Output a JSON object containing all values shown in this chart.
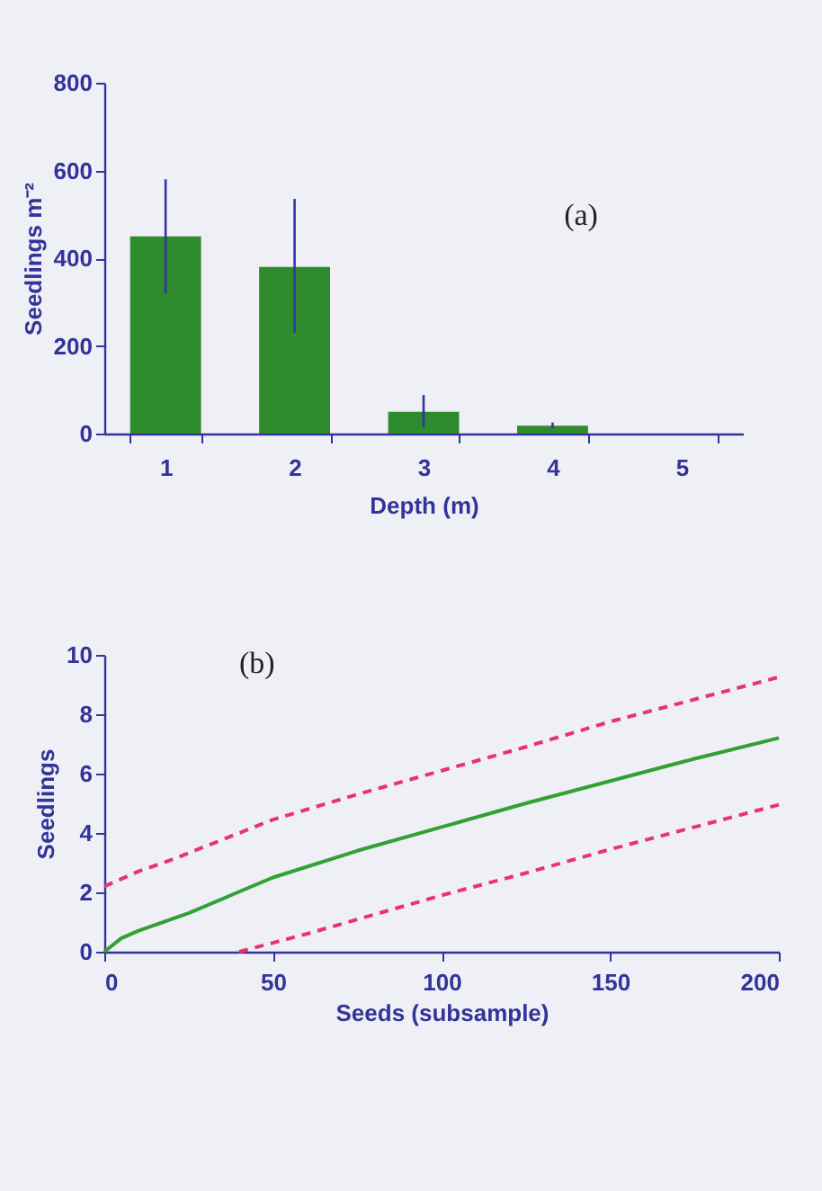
{
  "chart_data": [
    {
      "type": "bar",
      "categories": [
        "1",
        "2",
        "3",
        "4",
        "5"
      ],
      "values": [
        450,
        380,
        50,
        18,
        null
      ],
      "color": "#2e8b2e",
      "errors": [
        [
          320,
          580
        ],
        [
          230,
          535
        ],
        [
          15,
          88
        ],
        [
          12,
          25
        ],
        null
      ],
      "ylim": [
        0,
        800
      ],
      "yticks": [
        0,
        200,
        400,
        600,
        800
      ],
      "xlabel": "Depth (m)",
      "ylabel": "Seedlings m⁻²",
      "annotations": [
        "(a)"
      ]
    },
    {
      "type": "line",
      "xlim": [
        0,
        200
      ],
      "xticks": [
        0,
        50,
        100,
        150,
        200
      ],
      "ylim": [
        0,
        10
      ],
      "yticks": [
        0,
        2,
        4,
        6,
        8,
        10
      ],
      "xlabel": "Seeds (subsample)",
      "ylabel": "Seedlings",
      "annotations": [
        "(b)"
      ],
      "series": [
        {
          "color": "#33a033",
          "line_style": "solid",
          "x": [
            0,
            5,
            10,
            25,
            50,
            75,
            100,
            125,
            150,
            175,
            200
          ],
          "values": [
            0,
            0.45,
            0.7,
            1.3,
            2.5,
            3.4,
            4.2,
            5.0,
            5.75,
            6.5,
            7.2
          ]
        },
        {
          "color": "#e8336e",
          "line_style": "dashed",
          "x": [
            0,
            10,
            20,
            50,
            75,
            100,
            125,
            150,
            175,
            200
          ],
          "values": [
            2.2,
            2.7,
            3.1,
            4.45,
            5.3,
            6.1,
            6.9,
            7.75,
            8.5,
            9.25
          ]
        },
        {
          "color": "#e8336e",
          "line_style": "dashed",
          "x": [
            40,
            60,
            80,
            100,
            125,
            150,
            175,
            200
          ],
          "values": [
            0,
            0.6,
            1.25,
            1.9,
            2.65,
            3.45,
            4.2,
            4.95
          ]
        }
      ]
    }
  ]
}
